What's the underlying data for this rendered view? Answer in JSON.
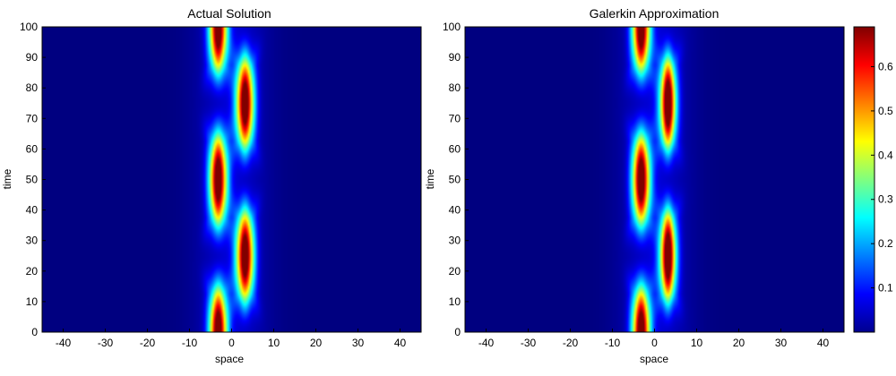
{
  "chart_data": [
    {
      "type": "heatmap",
      "title": "Actual Solution",
      "xlabel": "space",
      "ylabel": "time",
      "xlim": [
        -45,
        45
      ],
      "ylim": [
        0,
        100
      ],
      "xticks": [
        -40,
        -30,
        -20,
        -10,
        0,
        10,
        20,
        30,
        40
      ],
      "yticks": [
        0,
        10,
        20,
        30,
        40,
        50,
        60,
        70,
        80,
        90,
        100
      ],
      "colormap": "jet",
      "grid": false
    },
    {
      "type": "heatmap",
      "title": "Galerkin Approximation",
      "xlabel": "space",
      "ylabel": "time",
      "xlim": [
        -45,
        45
      ],
      "ylim": [
        0,
        100
      ],
      "xticks": [
        -40,
        -30,
        -20,
        -10,
        0,
        10,
        20,
        30,
        40
      ],
      "yticks": [
        0,
        10,
        20,
        30,
        40,
        50,
        60,
        70,
        80,
        90,
        100
      ],
      "colormap": "jet",
      "grid": false
    }
  ],
  "colorbar": {
    "range": [
      0,
      0.69
    ],
    "ticks": [
      0.1,
      0.2,
      0.3,
      0.4,
      0.5,
      0.6
    ],
    "tick_labels": [
      "0.1",
      "0.2",
      "0.3",
      "0.4",
      "0.5",
      "0.6"
    ]
  }
}
